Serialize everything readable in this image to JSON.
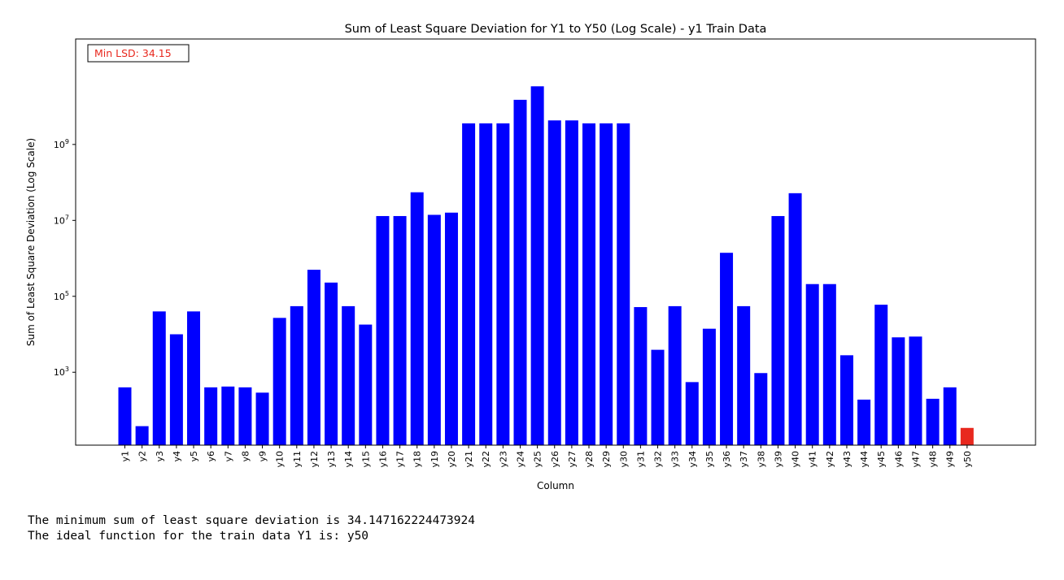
{
  "chart_data": {
    "type": "bar",
    "title": "Sum of Least Square Deviation for Y1 to Y50 (Log Scale) - y1 Train Data",
    "xlabel": "Column",
    "ylabel": "Sum of Least Square Deviation (Log Scale)",
    "yscale": "log",
    "ylim": [
      12,
      600000000000
    ],
    "ytick_values": [
      1000,
      10000000,
      1000000000
    ],
    "ytick_values_minor": [
      100000
    ],
    "ytick_labels": [
      {
        "base": "10",
        "exp": "3"
      },
      {
        "base": "10",
        "exp": "5"
      },
      {
        "base": "10",
        "exp": "7"
      },
      {
        "base": "10",
        "exp": "9"
      }
    ],
    "categories": [
      "y1",
      "y2",
      "y3",
      "y4",
      "y5",
      "y6",
      "y7",
      "y8",
      "y9",
      "y10",
      "y11",
      "y12",
      "y13",
      "y14",
      "y15",
      "y16",
      "y17",
      "y18",
      "y19",
      "y20",
      "y21",
      "y22",
      "y23",
      "y24",
      "y25",
      "y26",
      "y27",
      "y28",
      "y29",
      "y30",
      "y31",
      "y32",
      "y33",
      "y34",
      "y35",
      "y36",
      "y37",
      "y38",
      "y39",
      "y40",
      "y41",
      "y42",
      "y43",
      "y44",
      "y45",
      "y46",
      "y47",
      "y48",
      "y49",
      "y50"
    ],
    "values": [
      400,
      38,
      40000,
      10000,
      40000,
      400,
      420,
      400,
      290,
      27000,
      55000,
      500000,
      230000,
      55000,
      18000,
      13000000,
      13000000,
      55000000,
      14000000,
      16000000,
      3600000000,
      3600000000,
      3600000000,
      15000000000,
      34000000000,
      4300000000,
      4300000000,
      3600000000,
      3600000000,
      3600000000,
      52000,
      3900,
      55000,
      550,
      14000,
      1400000,
      55000,
      950,
      13000000,
      52000000,
      210000,
      210000,
      2800,
      190,
      60000,
      8300,
      8700,
      200,
      400,
      34.15
    ],
    "bar_color": "#0000ff",
    "highlight_index": 49,
    "highlight_color": "#e8281e",
    "grid": false,
    "legend": "none",
    "annotation": {
      "text": "Min LSD: 34.15",
      "color": "#e8281e",
      "placement": "top-left"
    }
  },
  "output": {
    "line1": "The minimum sum of least square deviation is 34.147162224473924",
    "line2": "The ideal function for the train data Y1 is: y50"
  }
}
